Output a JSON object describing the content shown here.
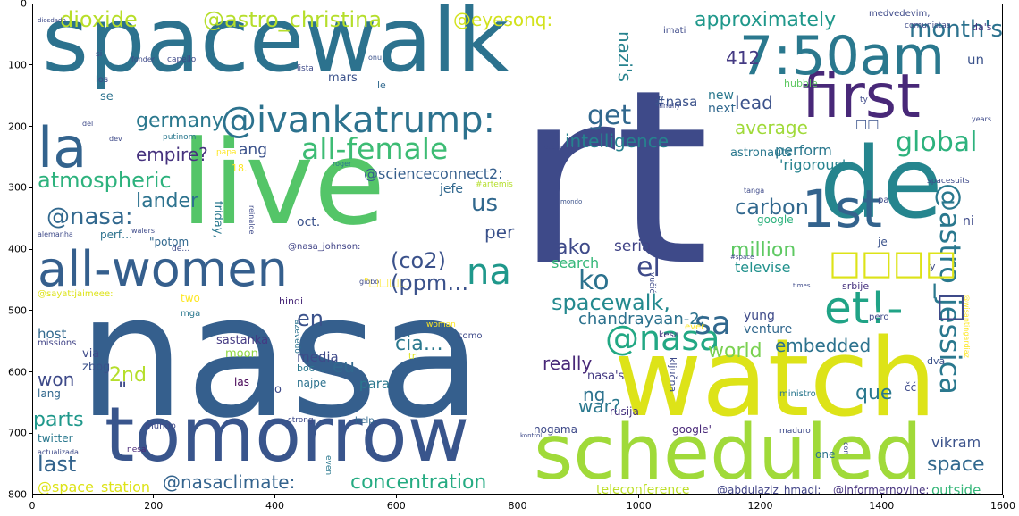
{
  "chart_data": {
    "type": "wordcloud",
    "x_ticks": [
      "0",
      "200",
      "400",
      "600",
      "800",
      "1000",
      "1200",
      "1400",
      "1600"
    ],
    "y_ticks": [
      "0",
      "100",
      "200",
      "300",
      "400",
      "500",
      "600",
      "700",
      "800"
    ],
    "xlim": [
      0,
      1600
    ],
    "ylim": [
      800,
      0
    ],
    "grid": false,
    "words": [
      {
        "text": "spacewalk",
        "color": "#2c728e"
      },
      {
        "text": "rt",
        "color": "#3e4a89"
      },
      {
        "text": "nasa",
        "color": "#355f8d"
      },
      {
        "text": "live",
        "color": "#54c568"
      },
      {
        "text": "watch",
        "color": "#dde318"
      },
      {
        "text": "de",
        "color": "#25858e"
      },
      {
        "text": "tomorrow",
        "color": "#39558c"
      },
      {
        "text": "scheduled",
        "color": "#a0da39"
      },
      {
        "text": "first",
        "color": "#482878"
      },
      {
        "text": "7:50am",
        "color": "#2a788e"
      },
      {
        "text": "all-women",
        "color": "#355f8d"
      },
      {
        "text": "@ivankatrump:",
        "color": "#2c728e"
      },
      {
        "text": "la",
        "color": "#33638d"
      },
      {
        "text": "1st",
        "color": "#33638d"
      },
      {
        "text": "all-female",
        "color": "#3dbc74"
      },
      {
        "text": "@astro_jessica",
        "color": "#2a788e"
      },
      {
        "text": "et!-",
        "color": "#20a386"
      },
      {
        "text": "@nasa",
        "color": "#22a884"
      },
      {
        "text": "na",
        "color": "#1f988b"
      },
      {
        "text": "dioxide",
        "color": "#b8de29"
      },
      {
        "text": "@astro_christina",
        "color": "#b5de2b"
      },
      {
        "text": "@eyesonq:",
        "color": "#d2e21b"
      },
      {
        "text": "approximately",
        "color": "#1f988b"
      },
      {
        "text": "month's",
        "color": "#2c728e"
      },
      {
        "text": "global",
        "color": "#2db27d"
      },
      {
        "text": "atmospheric",
        "color": "#2db27d"
      },
      {
        "text": "@nasa:",
        "color": "#31688e"
      },
      {
        "text": "get",
        "color": "#31688e"
      },
      {
        "text": "intelligence",
        "color": "#26828e"
      },
      {
        "text": "nazi's",
        "color": "#26828e"
      },
      {
        "text": "average",
        "color": "#a0da39"
      },
      {
        "text": "412",
        "color": "#443a83"
      },
      {
        "text": "germany",
        "color": "#2a788e"
      },
      {
        "text": "lead",
        "color": "#3b528b"
      },
      {
        "text": "carbon",
        "color": "#31688e"
      },
      {
        "text": "million",
        "color": "#5ec962"
      },
      {
        "text": "el",
        "color": "#3e4a89"
      },
      {
        "text": "ko",
        "color": "#2c728e"
      },
      {
        "text": "(co2)",
        "color": "#3b528b"
      },
      {
        "text": "(ppm…",
        "color": "#3b528b"
      },
      {
        "text": "spacewalk,",
        "color": "#23898e"
      },
      {
        "text": "sa",
        "color": "#31688e"
      },
      {
        "text": "en",
        "color": "#3b528b"
      },
      {
        "text": "empire?",
        "color": "#46327e"
      },
      {
        "text": "lander",
        "color": "#2c728e"
      },
      {
        "text": "us",
        "color": "#31688e"
      },
      {
        "text": "per",
        "color": "#3b528b"
      },
      {
        "text": "ako",
        "color": "#3e4a89"
      },
      {
        "text": "seria",
        "color": "#414487"
      },
      {
        "text": "search",
        "color": "#35b779"
      },
      {
        "text": "televise",
        "color": "#21918c"
      },
      {
        "text": "perform",
        "color": "#2a788e"
      },
      {
        "text": "'rigorous'",
        "color": "#26828e"
      },
      {
        "text": "ang",
        "color": "#3b528b"
      },
      {
        "text": "@scienceconnect2:",
        "color": "#355f8d"
      },
      {
        "text": "chandrayaan-2:",
        "color": "#2c728e"
      },
      {
        "text": "cia…",
        "color": "#2a788e"
      },
      {
        "text": "world",
        "color": "#7ad151"
      },
      {
        "text": "embedded",
        "color": "#2c728e"
      },
      {
        "text": "eu",
        "color": "#31688e"
      },
      {
        "text": "really",
        "color": "#482878"
      },
      {
        "text": "2nd",
        "color": "#b5de2b"
      },
      {
        "text": "won",
        "color": "#3e4a89"
      },
      {
        "text": "parts",
        "color": "#1f988b"
      },
      {
        "text": "last",
        "color": "#33638d"
      },
      {
        "text": "que",
        "color": "#2a788e"
      },
      {
        "text": "@nasaclimate:",
        "color": "#33638d"
      },
      {
        "text": "concentration",
        "color": "#25ab82"
      },
      {
        "text": "space",
        "color": "#31688e"
      },
      {
        "text": "vikram",
        "color": "#3b528b"
      },
      {
        "text": "@space_station",
        "color": "#dde318"
      },
      {
        "text": "teleconference",
        "color": "#bddf26"
      },
      {
        "text": "@abdulaziz_hmadi:",
        "color": "#414487"
      },
      {
        "text": "@informernovine:",
        "color": "#46327e"
      },
      {
        "text": "outside",
        "color": "#35b779"
      },
      {
        "text": "war?",
        "color": "#2a788e"
      },
      {
        "text": "ng",
        "color": "#2c728e"
      },
      {
        "text": "media",
        "color": "#3e4a89"
      },
      {
        "text": "para",
        "color": "#2a788e"
      },
      {
        "text": "host",
        "color": "#31688e"
      },
      {
        "text": "moon",
        "color": "#90d743"
      },
      {
        "text": "sastanka",
        "color": "#443a83"
      },
      {
        "text": "via",
        "color": "#3e4a89"
      },
      {
        "text": "zbog",
        "color": "#3b528b"
      },
      {
        "text": "lang",
        "color": "#31688e"
      },
      {
        "text": "las",
        "color": "#440154"
      },
      {
        "text": "new",
        "color": "#2a788e"
      },
      {
        "text": "next",
        "color": "#31688e"
      },
      {
        "text": "#nasa",
        "color": "#3b528b"
      },
      {
        "text": "hubble",
        "color": "#5ec962"
      },
      {
        "text": "astronauts",
        "color": "#2a788e"
      },
      {
        "text": "mars",
        "color": "#3b528b"
      },
      {
        "text": "le",
        "color": "#31688e"
      },
      {
        "text": "se",
        "color": "#2c728e"
      },
      {
        "text": "friday,",
        "color": "#2a788e"
      },
      {
        "text": "oct.",
        "color": "#3b528b"
      },
      {
        "text": "jefe",
        "color": "#31688e"
      },
      {
        "text": "google",
        "color": "#2db27d"
      },
      {
        "text": "@nasa_johnson:",
        "color": "#414487"
      },
      {
        "text": "two",
        "color": "#fde725"
      },
      {
        "text": "hindi",
        "color": "#482878"
      },
      {
        "text": "yung",
        "color": "#3e4a89"
      },
      {
        "text": "venture",
        "color": "#31688e"
      },
      {
        "text": "google\"",
        "color": "#482878"
      },
      {
        "text": "nasa's",
        "color": "#443a83"
      },
      {
        "text": "rusija",
        "color": "#46327e"
      },
      {
        "text": "nogama",
        "color": "#3e4a89"
      },
      {
        "text": "twitter",
        "color": "#2a788e"
      },
      {
        "text": "kesa",
        "color": "#46327e"
      },
      {
        "text": "como",
        "color": "#3e4a89"
      },
      {
        "text": "perf…",
        "color": "#2c728e"
      },
      {
        "text": "\"potom",
        "color": "#31688e"
      },
      {
        "text": "je",
        "color": "#3b528b"
      },
      {
        "text": "ni",
        "color": "#3e4a89"
      },
      {
        "text": "srbije",
        "color": "#46327e"
      },
      {
        "text": "pero",
        "color": "#3e4a89"
      },
      {
        "text": "dva",
        "color": "#3b528b"
      },
      {
        "text": "ministro",
        "color": "#2a788e"
      },
      {
        "text": "one",
        "color": "#2c728e"
      },
      {
        "text": "\"",
        "color": "#3e4a89"
      },
      {
        "text": "o",
        "color": "#3e4a89"
      },
      {
        "text": "najpe",
        "color": "#2c728e"
      },
      {
        "text": "boc…",
        "color": "#2a788e"
      },
      {
        "text": "mga",
        "color": "#2a788e"
      },
      {
        "text": "help",
        "color": "#31688e"
      },
      {
        "text": "mundo",
        "color": "#3e4a89"
      },
      {
        "text": "even",
        "color": "#2a788e"
      },
      {
        "text": "nesa",
        "color": "#482878"
      },
      {
        "text": "missions",
        "color": "#414487"
      },
      {
        "text": "strong",
        "color": "#3e4a89"
      },
      {
        "text": "azevedo",
        "color": "#2c728e"
      },
      {
        "text": "woman",
        "color": "#fde725"
      },
      {
        "text": "tri",
        "color": "#dde318"
      },
      {
        "text": "ever",
        "color": "#fde725"
      },
      {
        "text": "lista",
        "color": "#3e4a89"
      },
      {
        "text": "onu",
        "color": "#3b528b"
      },
      {
        "text": "imati",
        "color": "#3e4a89"
      },
      {
        "text": "medvedevim,",
        "color": "#3e4a89"
      },
      {
        "text": "comunistas",
        "color": "#3e4a89"
      },
      {
        "text": "da's",
        "color": "#46327e"
      },
      {
        "text": "un",
        "color": "#3b528b"
      },
      {
        "text": "fonder",
        "color": "#3e4a89"
      },
      {
        "text": "capello",
        "color": "#3e4a89"
      },
      {
        "text": "diosdado",
        "color": "#3e4a89"
      },
      {
        "text": "si",
        "color": "#3e4a89"
      },
      {
        "text": "finally",
        "color": "#3e4a89"
      },
      {
        "text": "years",
        "color": "#3e4a89"
      },
      {
        "text": "dev",
        "color": "#3e4a89"
      },
      {
        "text": "putinom",
        "color": "#2a788e"
      },
      {
        "text": "papa",
        "color": "#fde725"
      },
      {
        "text": "18.",
        "color": "#fde725"
      },
      {
        "text": "roger",
        "color": "#2a788e"
      },
      {
        "text": "educación.",
        "color": "#3e4a89"
      },
      {
        "text": "#artemis",
        "color": "#b5de2b"
      },
      {
        "text": "mondo",
        "color": "#3b528b"
      },
      {
        "text": "pa",
        "color": "#3e4a89"
      },
      {
        "text": "tanga",
        "color": "#3e4a89"
      },
      {
        "text": "spacesuits",
        "color": "#3e4a89"
      },
      {
        "text": "@sayattjaimeee:",
        "color": "#dde318"
      },
      {
        "text": "times",
        "color": "#3e4a89"
      },
      {
        "text": "#space",
        "color": "#3e4a89"
      },
      {
        "text": "vučić",
        "color": "#3e4a89"
      },
      {
        "text": "globo",
        "color": "#3e4a89"
      },
      {
        "text": "ključna",
        "color": "#3e4a89"
      },
      {
        "text": "maduro",
        "color": "#3e4a89"
      },
      {
        "text": "actualizada",
        "color": "#3e4a89"
      },
      {
        "text": "kontrol",
        "color": "#3e4a89"
      },
      {
        "text": "reinalde",
        "color": "#3e4a89"
      },
      {
        "text": "walers",
        "color": "#3e4a89"
      },
      {
        "text": "alemanha",
        "color": "#3e4a89"
      },
      {
        "text": "@wisantingardiaz",
        "color": "#fde725"
      },
      {
        "text": "čć",
        "color": "#3e4a89"
      },
      {
        "text": "con",
        "color": "#3e4a89"
      },
      {
        "text": "los",
        "color": "#3e4a89"
      },
      {
        "text": "del",
        "color": "#3e4a89"
      },
      {
        "text": "ty",
        "color": "#3e4a89"
      },
      {
        "text": "de…",
        "color": "#3e4a89"
      },
      {
        "text": "\"□□□□",
        "color": "#fde725"
      },
      {
        "text": "y",
        "color": "#3e4a89"
      },
      {
        "text": "□□□□",
        "color": "#dde318"
      },
      {
        "text": "□□",
        "color": "#3b528b"
      },
      {
        "text": "□",
        "color": "#3e4a89"
      }
    ]
  }
}
